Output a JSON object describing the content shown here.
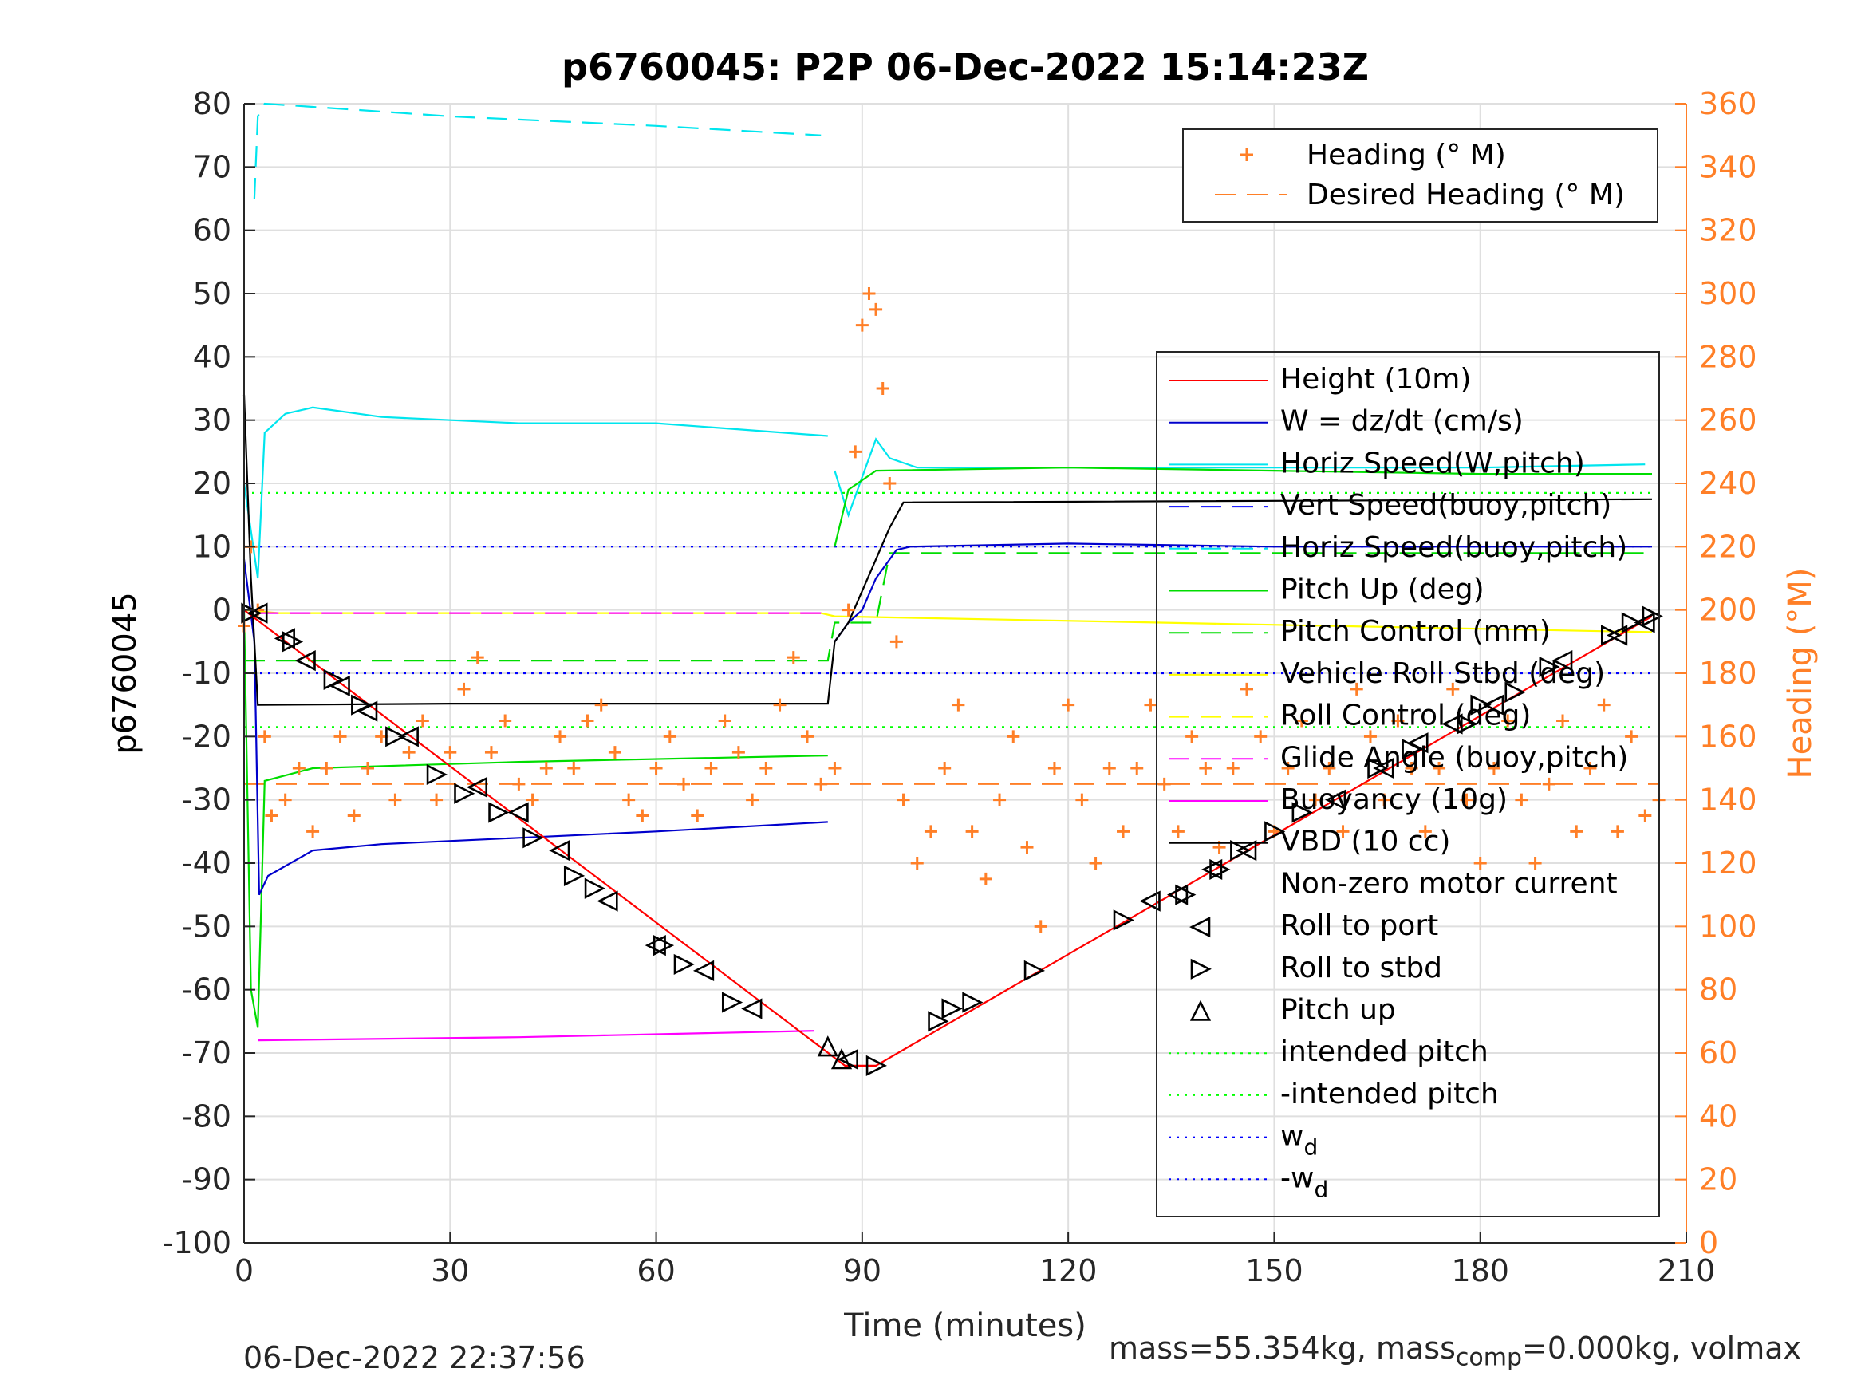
{
  "chart_data": {
    "type": "line",
    "title": "p6760045: P2P 06-Dec-2022 15:14:23Z",
    "xlabel": "Time (minutes)",
    "ylabel": "p6760045",
    "ylabel_right": "Heading (°M)",
    "xlim": [
      0,
      210
    ],
    "ylim": [
      -100,
      80
    ],
    "ylim_right": [
      0,
      360
    ],
    "xticks": [
      "0",
      "30",
      "60",
      "90",
      "120",
      "150",
      "180",
      "210"
    ],
    "yticks": [
      "80",
      "70",
      "60",
      "50",
      "40",
      "30",
      "20",
      "10",
      "0",
      "-10",
      "-20",
      "-30",
      "-40",
      "-50",
      "-60",
      "-70",
      "-80",
      "-90",
      "-100"
    ],
    "yticks_right": [
      "360",
      "340",
      "320",
      "300",
      "280",
      "260",
      "240",
      "220",
      "200",
      "180",
      "160",
      "140",
      "120",
      "100",
      "80",
      "60",
      "40",
      "20",
      "0"
    ],
    "grid": true,
    "legend_heading": {
      "placement": "top-right",
      "entries": [
        {
          "label": "Heading (° M)",
          "color": "#FF7F27",
          "marker": "plus"
        },
        {
          "label": "Desired Heading (° M)",
          "color": "#FF7F27",
          "style": "dashed"
        }
      ]
    },
    "legend_main": {
      "placement": "right",
      "entries": [
        {
          "label": "Height (10m)",
          "color": "#FF0000",
          "style": "solid"
        },
        {
          "label": "W = dz/dt (cm/s)",
          "color": "#0000CC",
          "style": "solid"
        },
        {
          "label": "Horiz Speed(W,pitch)",
          "color": "#00E5EE",
          "style": "solid"
        },
        {
          "label": "Vert Speed(buoy,pitch)",
          "color": "#0000FF",
          "style": "dashed"
        },
        {
          "label": "Horiz Speed(buoy,pitch)",
          "color": "#00E5EE",
          "style": "dashed"
        },
        {
          "label": "Pitch Up (deg)",
          "color": "#00DD00",
          "style": "solid"
        },
        {
          "label": "Pitch Control (mm)",
          "color": "#00DD00",
          "style": "dashed"
        },
        {
          "label": "Vehicle Roll Stbd (deg)",
          "color": "#FFFF00",
          "style": "solid"
        },
        {
          "label": "Roll Control (deg)",
          "color": "#FFFF00",
          "style": "dashed"
        },
        {
          "label": "Glide Angle (buoy,pitch)",
          "color": "#FF00FF",
          "style": "dashed"
        },
        {
          "label": "Buoyancy (10g)",
          "color": "#FF00FF",
          "style": "solid"
        },
        {
          "label": "VBD (10 cc)",
          "color": "#000000",
          "style": "solid"
        },
        {
          "label": "Non-zero motor current",
          "color": "#000000",
          "style": "dot"
        },
        {
          "label": "Roll to port",
          "color": "#000000",
          "marker": "tri-left"
        },
        {
          "label": "Roll to stbd",
          "color": "#000000",
          "marker": "tri-right"
        },
        {
          "label": "Pitch up",
          "color": "#000000",
          "marker": "tri-up"
        },
        {
          "label": "intended pitch",
          "color": "#00FF00",
          "style": "dotted"
        },
        {
          "label": "-intended pitch",
          "color": "#00FF00",
          "style": "dotted"
        },
        {
          "label": "w",
          "label_sub": "d",
          "color": "#0000FF",
          "style": "dotted"
        },
        {
          "label": "-w",
          "label_sub": "d",
          "color": "#0000FF",
          "style": "dotted"
        }
      ]
    },
    "reference_lines": {
      "intended_pitch": 18.5,
      "neg_intended_pitch": -18.5,
      "w_d": 10,
      "neg_w_d": -10,
      "desired_heading_deg": 145
    },
    "series": {
      "height": [
        [
          0,
          0
        ],
        [
          87.5,
          -72
        ],
        [
          92,
          -72
        ],
        [
          205,
          -1
        ]
      ],
      "w": [
        [
          0,
          8
        ],
        [
          1.5,
          -5
        ],
        [
          2.2,
          -45
        ],
        [
          3.5,
          -42
        ],
        [
          10,
          -38
        ],
        [
          20,
          -37
        ],
        [
          40,
          -36
        ],
        [
          60,
          -35
        ],
        [
          85,
          -33.5
        ]
      ],
      "w_after": [
        [
          86,
          -5
        ],
        [
          88,
          -2
        ],
        [
          90,
          0
        ],
        [
          92,
          5
        ],
        [
          95,
          9.5
        ],
        [
          97,
          10
        ],
        [
          120,
          10.5
        ],
        [
          150,
          10
        ],
        [
          180,
          10
        ],
        [
          205,
          10
        ]
      ],
      "horiz_speed": [
        [
          0,
          20
        ],
        [
          2,
          5
        ],
        [
          3,
          28
        ],
        [
          6,
          31
        ],
        [
          10,
          32
        ],
        [
          20,
          30.5
        ],
        [
          40,
          29.5
        ],
        [
          60,
          29.5
        ],
        [
          85,
          27.5
        ]
      ],
      "horiz_speed_after": [
        [
          86,
          22
        ],
        [
          88,
          15
        ],
        [
          92,
          27
        ],
        [
          94,
          24
        ],
        [
          98,
          22.5
        ],
        [
          150,
          22.5
        ],
        [
          180,
          22.5
        ],
        [
          204,
          23
        ]
      ],
      "horiz_speed_buoy": [
        [
          1.5,
          65
        ],
        [
          2,
          78
        ],
        [
          3,
          80
        ],
        [
          10,
          79.5
        ],
        [
          30,
          78
        ],
        [
          60,
          76.5
        ],
        [
          84,
          75
        ]
      ],
      "pitch_up": [
        [
          0,
          0
        ],
        [
          1,
          -60
        ],
        [
          2,
          -66
        ],
        [
          3,
          -27
        ],
        [
          10,
          -25
        ],
        [
          40,
          -24
        ],
        [
          85,
          -23
        ]
      ],
      "pitch_up_after": [
        [
          86,
          10
        ],
        [
          88,
          19
        ],
        [
          92,
          22
        ],
        [
          120,
          22.5
        ],
        [
          150,
          22
        ],
        [
          180,
          21.5
        ],
        [
          205,
          21.5
        ]
      ],
      "pitch_control": [
        [
          0,
          -8
        ],
        [
          85,
          -8
        ],
        [
          86,
          -2
        ],
        [
          92,
          -2
        ],
        [
          94,
          9
        ],
        [
          205,
          9
        ]
      ],
      "roll": [
        [
          0,
          0
        ],
        [
          5,
          -0.5
        ],
        [
          50,
          -0.5
        ],
        [
          84,
          -0.5
        ],
        [
          86,
          -1
        ],
        [
          205,
          -3.5
        ]
      ],
      "buoyancy": [
        [
          2,
          -68
        ],
        [
          40,
          -67.5
        ],
        [
          83,
          -66.5
        ]
      ],
      "glide_angle": [
        [
          2,
          -0.5
        ],
        [
          84,
          -0.5
        ]
      ],
      "vbd": [
        [
          0,
          34
        ],
        [
          1,
          5
        ],
        [
          2,
          -15
        ],
        [
          30,
          -14.8
        ],
        [
          60,
          -14.8
        ],
        [
          85,
          -14.8
        ],
        [
          86,
          -5
        ],
        [
          88,
          -2
        ],
        [
          92,
          8
        ],
        [
          94,
          13
        ],
        [
          96,
          17
        ],
        [
          205,
          17.5
        ]
      ],
      "roll_to_port": [
        [
          2,
          -0.5
        ],
        [
          6,
          -4.5
        ],
        [
          9,
          -8
        ],
        [
          14,
          -12
        ],
        [
          18,
          -16
        ],
        [
          24,
          -20
        ],
        [
          34,
          -28
        ],
        [
          40,
          -32
        ],
        [
          46,
          -38
        ],
        [
          53,
          -46
        ],
        [
          60,
          -53
        ],
        [
          67,
          -57
        ],
        [
          74,
          -63
        ],
        [
          88,
          -71
        ],
        [
          132,
          -46
        ],
        [
          136,
          -45
        ],
        [
          141,
          -41
        ],
        [
          146,
          -38
        ],
        [
          159,
          -30
        ],
        [
          166,
          -25
        ],
        [
          171,
          -21
        ],
        [
          176,
          -18
        ],
        [
          182,
          -15
        ],
        [
          192,
          -8
        ],
        [
          200,
          -4
        ],
        [
          204,
          -2
        ]
      ],
      "roll_to_stbd": [
        [
          1,
          -0.5
        ],
        [
          7,
          -5
        ],
        [
          13,
          -11
        ],
        [
          17,
          -15
        ],
        [
          22,
          -20
        ],
        [
          28,
          -26
        ],
        [
          32,
          -29
        ],
        [
          37,
          -32
        ],
        [
          42,
          -36
        ],
        [
          48,
          -42
        ],
        [
          51,
          -44
        ],
        [
          61,
          -53
        ],
        [
          64,
          -56
        ],
        [
          71,
          -62
        ],
        [
          92,
          -72
        ],
        [
          101,
          -65
        ],
        [
          103,
          -63
        ],
        [
          106,
          -62
        ],
        [
          115,
          -57
        ],
        [
          128,
          -49
        ],
        [
          137,
          -45
        ],
        [
          142,
          -41
        ],
        [
          145,
          -38
        ],
        [
          150,
          -35
        ],
        [
          154,
          -32
        ],
        [
          165,
          -25
        ],
        [
          170,
          -22
        ],
        [
          178,
          -18
        ],
        [
          180,
          -15
        ],
        [
          185,
          -13
        ],
        [
          190,
          -9
        ],
        [
          199,
          -4
        ],
        [
          202,
          -2
        ],
        [
          205,
          -1
        ]
      ],
      "pitch_up_marker": [
        [
          85,
          -69
        ],
        [
          87,
          -71
        ]
      ],
      "heading_samples": [
        [
          0,
          195
        ],
        [
          1,
          220
        ],
        [
          2,
          200
        ],
        [
          3,
          160
        ],
        [
          4,
          135
        ],
        [
          6,
          140
        ],
        [
          8,
          150
        ],
        [
          10,
          130
        ],
        [
          12,
          150
        ],
        [
          14,
          160
        ],
        [
          16,
          135
        ],
        [
          18,
          150
        ],
        [
          20,
          160
        ],
        [
          22,
          140
        ],
        [
          24,
          155
        ],
        [
          26,
          165
        ],
        [
          28,
          140
        ],
        [
          30,
          155
        ],
        [
          32,
          175
        ],
        [
          34,
          185
        ],
        [
          36,
          155
        ],
        [
          38,
          165
        ],
        [
          40,
          145
        ],
        [
          42,
          140
        ],
        [
          44,
          150
        ],
        [
          46,
          160
        ],
        [
          48,
          150
        ],
        [
          50,
          165
        ],
        [
          52,
          170
        ],
        [
          54,
          155
        ],
        [
          56,
          140
        ],
        [
          58,
          135
        ],
        [
          60,
          150
        ],
        [
          62,
          160
        ],
        [
          64,
          145
        ],
        [
          66,
          135
        ],
        [
          68,
          150
        ],
        [
          70,
          165
        ],
        [
          72,
          155
        ],
        [
          74,
          140
        ],
        [
          76,
          150
        ],
        [
          78,
          170
        ],
        [
          80,
          185
        ],
        [
          82,
          160
        ],
        [
          84,
          145
        ],
        [
          86,
          150
        ],
        [
          88,
          200
        ],
        [
          89,
          250
        ],
        [
          90,
          290
        ],
        [
          91,
          300
        ],
        [
          92,
          295
        ],
        [
          93,
          270
        ],
        [
          94,
          240
        ],
        [
          95,
          190
        ],
        [
          96,
          140
        ],
        [
          98,
          120
        ],
        [
          100,
          130
        ],
        [
          102,
          150
        ],
        [
          104,
          170
        ],
        [
          106,
          130
        ],
        [
          108,
          115
        ],
        [
          110,
          140
        ],
        [
          112,
          160
        ],
        [
          114,
          125
        ],
        [
          116,
          100
        ],
        [
          118,
          150
        ],
        [
          120,
          170
        ],
        [
          122,
          140
        ],
        [
          124,
          120
        ],
        [
          126,
          150
        ],
        [
          128,
          130
        ],
        [
          130,
          150
        ],
        [
          132,
          170
        ],
        [
          134,
          145
        ],
        [
          136,
          130
        ],
        [
          138,
          160
        ],
        [
          140,
          150
        ],
        [
          142,
          125
        ],
        [
          144,
          150
        ],
        [
          146,
          175
        ],
        [
          148,
          160
        ],
        [
          150,
          130
        ],
        [
          152,
          150
        ],
        [
          154,
          165
        ],
        [
          156,
          140
        ],
        [
          158,
          150
        ],
        [
          160,
          130
        ],
        [
          162,
          175
        ],
        [
          164,
          160
        ],
        [
          166,
          140
        ],
        [
          168,
          165
        ],
        [
          170,
          150
        ],
        [
          172,
          130
        ],
        [
          174,
          150
        ],
        [
          176,
          175
        ],
        [
          178,
          140
        ],
        [
          180,
          120
        ],
        [
          182,
          150
        ],
        [
          184,
          165
        ],
        [
          186,
          140
        ],
        [
          188,
          120
        ],
        [
          190,
          145
        ],
        [
          192,
          165
        ],
        [
          194,
          130
        ],
        [
          196,
          150
        ],
        [
          198,
          170
        ],
        [
          200,
          130
        ],
        [
          202,
          160
        ],
        [
          204,
          135
        ],
        [
          206,
          140
        ]
      ]
    }
  },
  "footer": {
    "timestamp": "06-Dec-2022 22:37:56",
    "mass_prefix": "mass=55.354kg, mass",
    "mass_sub": "comp",
    "mass_suffix": "=0.000kg, volmax"
  }
}
